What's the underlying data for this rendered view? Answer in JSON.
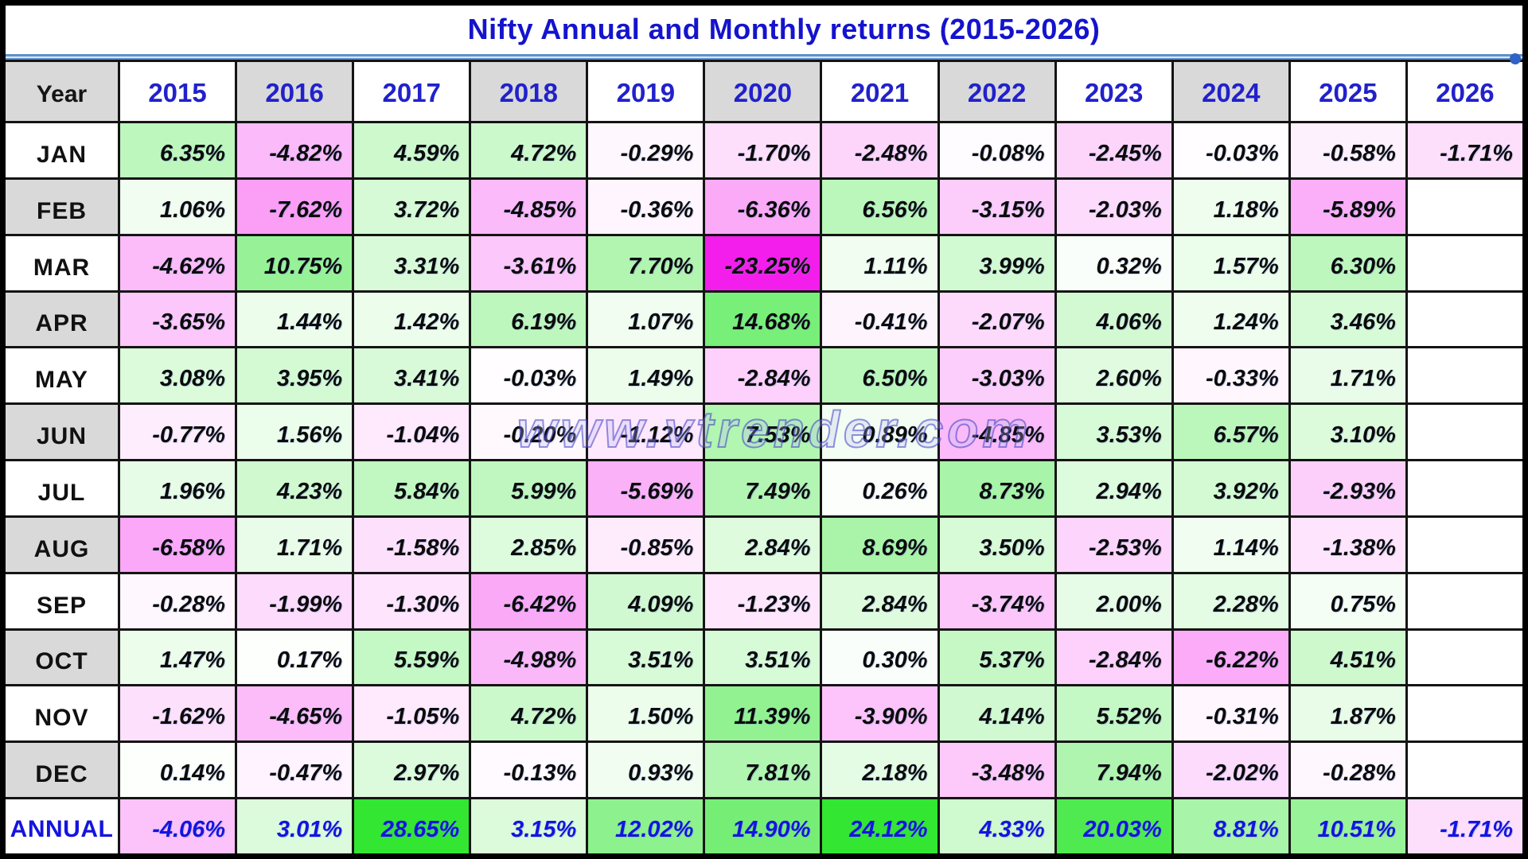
{
  "watermark": "www.vtrender.com",
  "colors": {
    "title_blue": "#1413CD",
    "year_blue": "#2121CC",
    "annual_blue": "#1414DF",
    "header_gray": "#D9D9D9",
    "grid_line": "#141414",
    "rule_blue": "#5E8FC8",
    "value_text": "#0B0B0B"
  },
  "chart_data": {
    "type": "heatmap",
    "title": "Nifty Annual and Monthly returns (2015-2026)",
    "corner_label": "Year",
    "columns": [
      "2015",
      "2016",
      "2017",
      "2018",
      "2019",
      "2020",
      "2021",
      "2022",
      "2023",
      "2024",
      "2025",
      "2026"
    ],
    "gray_column_indices": [
      1,
      3,
      5,
      7,
      9
    ],
    "rows": [
      {
        "label": "JAN",
        "values": [
          "6.35%",
          "-4.82%",
          "4.59%",
          "4.72%",
          "-0.29%",
          "-1.70%",
          "-2.48%",
          "-0.08%",
          "-2.45%",
          "-0.03%",
          "-0.58%",
          "-1.71%"
        ]
      },
      {
        "label": "FEB",
        "values": [
          "1.06%",
          "-7.62%",
          "3.72%",
          "-4.85%",
          "-0.36%",
          "-6.36%",
          "6.56%",
          "-3.15%",
          "-2.03%",
          "1.18%",
          "-5.89%",
          ""
        ]
      },
      {
        "label": "MAR",
        "values": [
          "-4.62%",
          "10.75%",
          "3.31%",
          "-3.61%",
          "7.70%",
          "-23.25%",
          "1.11%",
          "3.99%",
          "0.32%",
          "1.57%",
          "6.30%",
          ""
        ]
      },
      {
        "label": "APR",
        "values": [
          "-3.65%",
          "1.44%",
          "1.42%",
          "6.19%",
          "1.07%",
          "14.68%",
          "-0.41%",
          "-2.07%",
          "4.06%",
          "1.24%",
          "3.46%",
          ""
        ]
      },
      {
        "label": "MAY",
        "values": [
          "3.08%",
          "3.95%",
          "3.41%",
          "-0.03%",
          "1.49%",
          "-2.84%",
          "6.50%",
          "-3.03%",
          "2.60%",
          "-0.33%",
          "1.71%",
          ""
        ]
      },
      {
        "label": "JUN",
        "values": [
          "-0.77%",
          "1.56%",
          "-1.04%",
          "-0.20%",
          "-1.12%",
          "7.53%",
          "0.89%",
          "-4.85%",
          "3.53%",
          "6.57%",
          "3.10%",
          ""
        ]
      },
      {
        "label": "JUL",
        "values": [
          "1.96%",
          "4.23%",
          "5.84%",
          "5.99%",
          "-5.69%",
          "7.49%",
          "0.26%",
          "8.73%",
          "2.94%",
          "3.92%",
          "-2.93%",
          ""
        ]
      },
      {
        "label": "AUG",
        "values": [
          "-6.58%",
          "1.71%",
          "-1.58%",
          "2.85%",
          "-0.85%",
          "2.84%",
          "8.69%",
          "3.50%",
          "-2.53%",
          "1.14%",
          "-1.38%",
          ""
        ]
      },
      {
        "label": "SEP",
        "values": [
          "-0.28%",
          "-1.99%",
          "-1.30%",
          "-6.42%",
          "4.09%",
          "-1.23%",
          "2.84%",
          "-3.74%",
          "2.00%",
          "2.28%",
          "0.75%",
          ""
        ]
      },
      {
        "label": "OCT",
        "values": [
          "1.47%",
          "0.17%",
          "5.59%",
          "-4.98%",
          "3.51%",
          "3.51%",
          "0.30%",
          "5.37%",
          "-2.84%",
          "-6.22%",
          "4.51%",
          ""
        ]
      },
      {
        "label": "NOV",
        "values": [
          "-1.62%",
          "-4.65%",
          "-1.05%",
          "4.72%",
          "1.50%",
          "11.39%",
          "-3.90%",
          "4.14%",
          "5.52%",
          "-0.31%",
          "1.87%",
          ""
        ]
      },
      {
        "label": "DEC",
        "values": [
          "0.14%",
          "-0.47%",
          "2.97%",
          "-0.13%",
          "0.93%",
          "7.81%",
          "2.18%",
          "-3.48%",
          "7.94%",
          "-2.02%",
          "-0.28%",
          ""
        ]
      }
    ],
    "summary_row": {
      "label": "ANNUAL",
      "values": [
        "-4.06%",
        "3.01%",
        "28.65%",
        "3.15%",
        "12.02%",
        "14.90%",
        "24.12%",
        "4.33%",
        "20.03%",
        "8.81%",
        "10.51%",
        "-1.71%"
      ]
    },
    "colorscale": {
      "positive": "#32E632",
      "negative": "#F31EEB",
      "neutral": "#FFFFFF",
      "positive_cap": 24,
      "negative_cap": 23.25,
      "positive_exponent": 0.85,
      "negative_exponent": 0.75
    },
    "legend_position": "none",
    "grid": true
  }
}
